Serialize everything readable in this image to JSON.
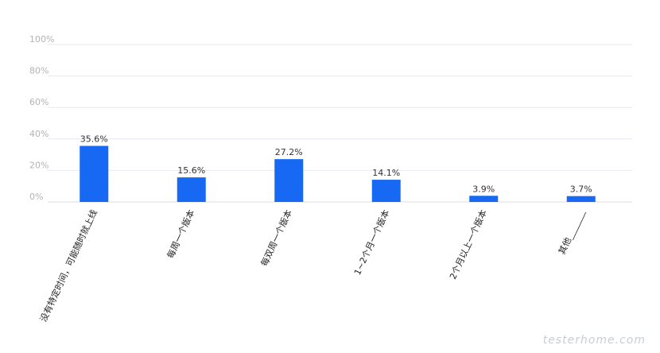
{
  "chart_data": {
    "type": "bar",
    "categories": [
      "没有特定时间，可能随时就上线",
      "每周一个版本",
      "每双周一个版本",
      "1~2个月一个版本",
      "2个月以上一个版本",
      "其他_______"
    ],
    "values": [
      35.6,
      15.6,
      27.2,
      14.1,
      3.9,
      3.7
    ],
    "value_labels": [
      "35.6%",
      "15.6%",
      "27.2%",
      "14.1%",
      "3.9%",
      "3.7%"
    ],
    "yticks": [
      0,
      20,
      40,
      60,
      80,
      100
    ],
    "ytick_labels": [
      "0%",
      "20%",
      "40%",
      "60%",
      "80%",
      "100%"
    ],
    "ylim": [
      0,
      100
    ],
    "grid": true,
    "bar_color": "#1768f2",
    "title": "",
    "xlabel": "",
    "ylabel": ""
  },
  "watermark": "testerhome.com"
}
